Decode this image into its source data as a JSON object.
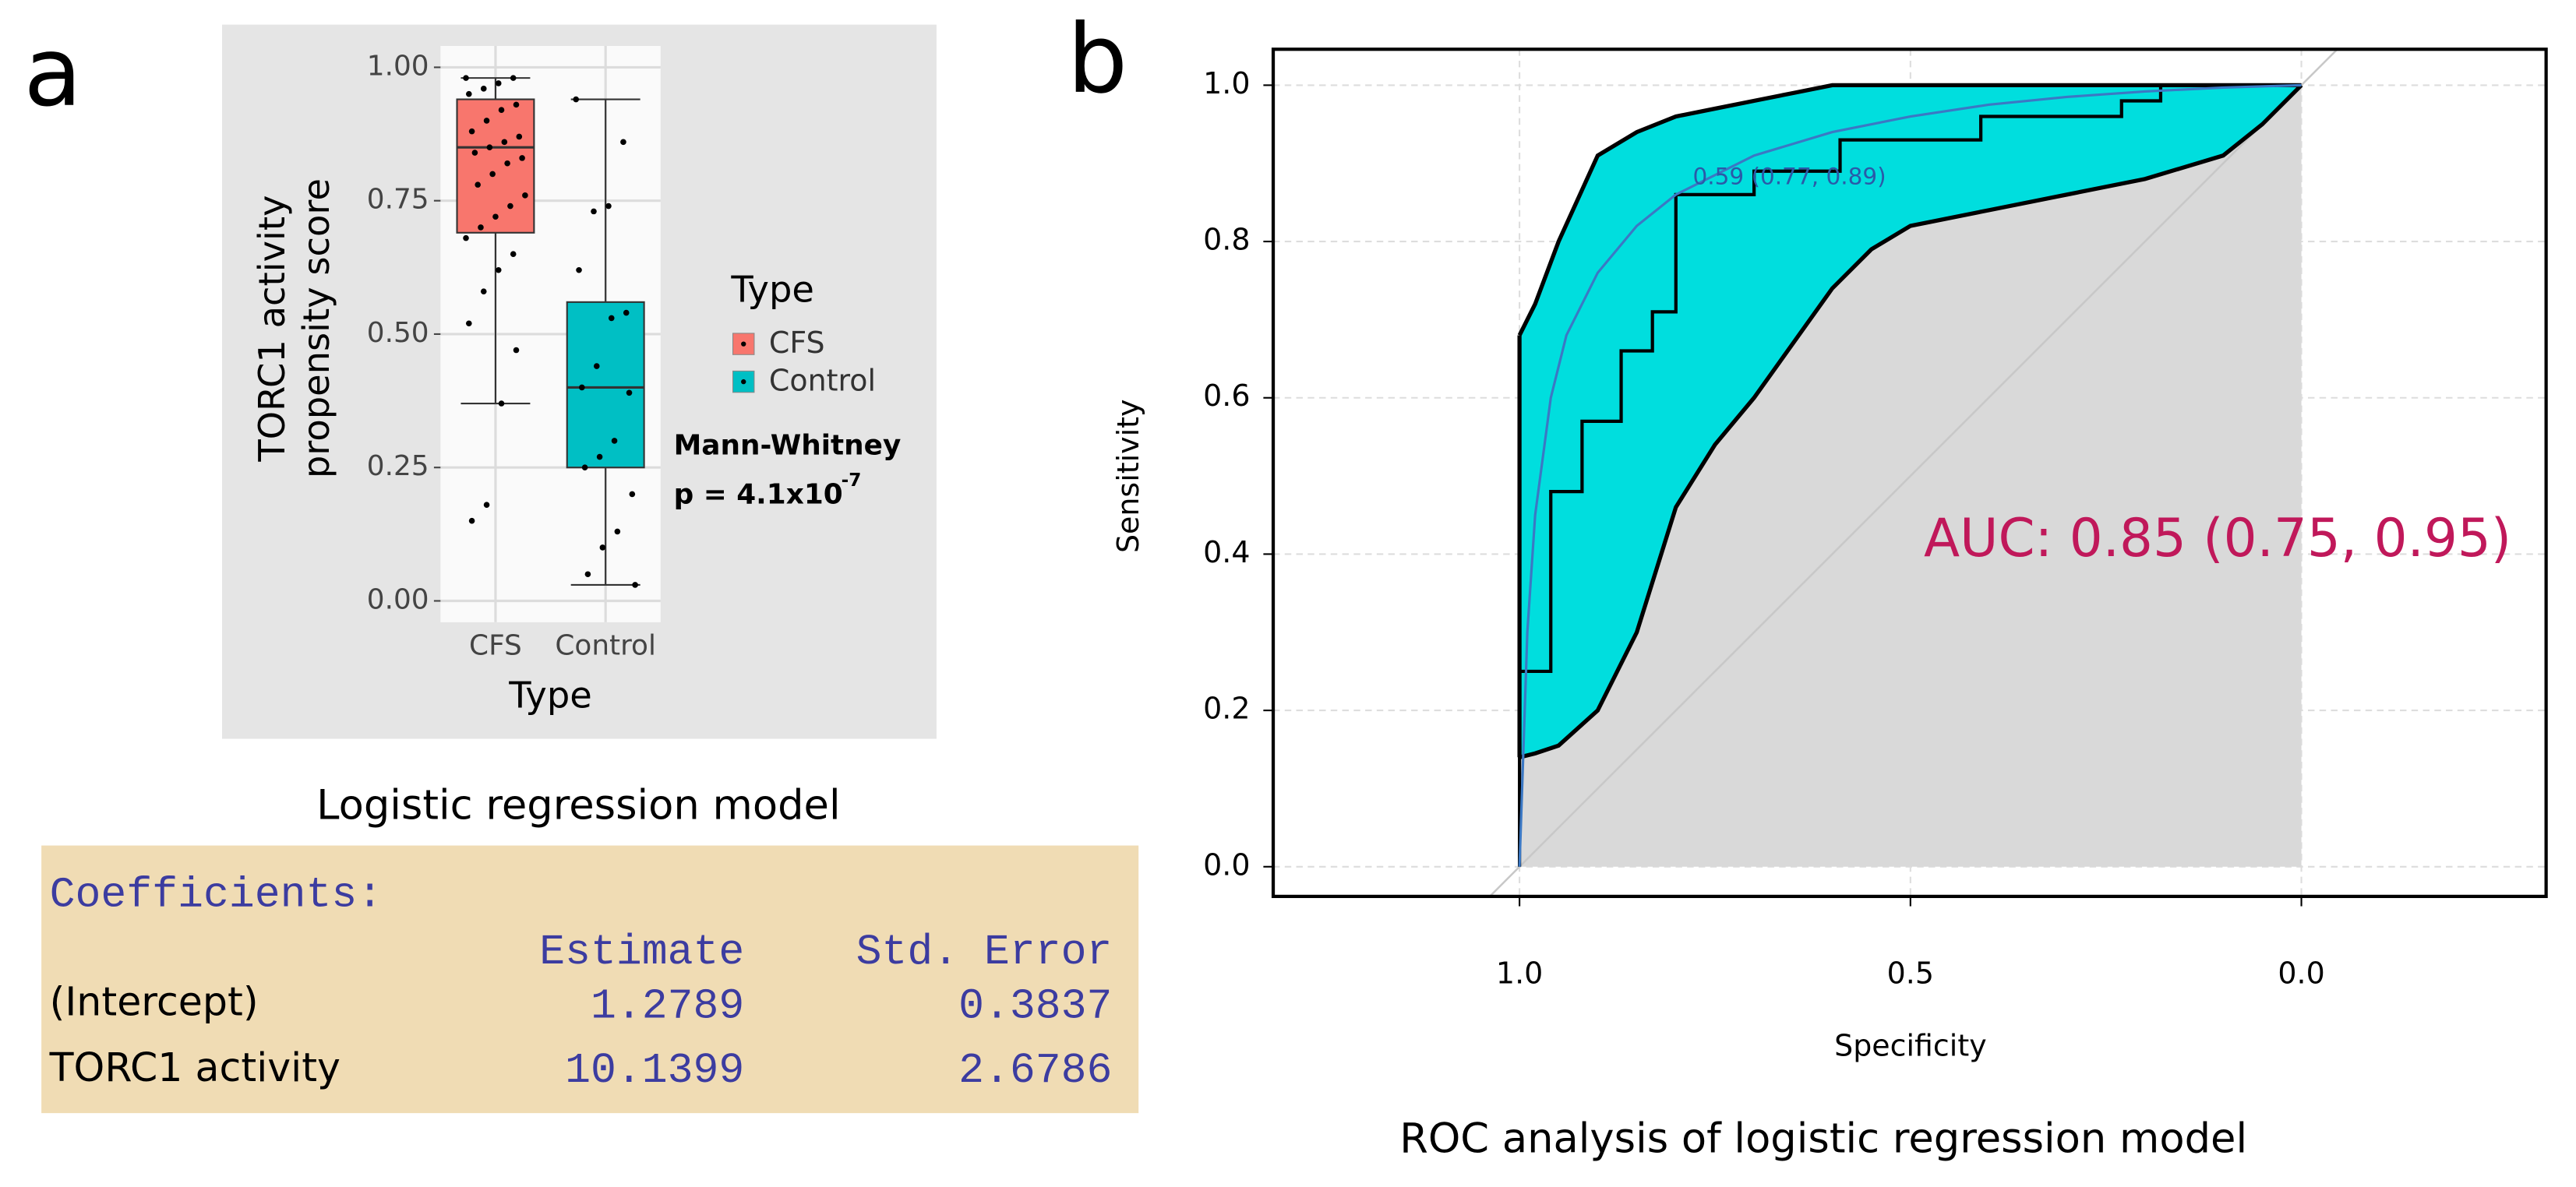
{
  "panel_labels": [
    "a",
    "b"
  ],
  "chart_data": [
    {
      "type": "box",
      "ylabel": [
        "TORC1 activity",
        "propensity score"
      ],
      "xlabel": "Type",
      "categories": [
        "CFS",
        "Control"
      ],
      "legend_title": "Type",
      "annotation": [
        "Mann-Whitney",
        "p = 4.1x10"
      ],
      "annotation_exponent": "-7",
      "ylim": [
        -0.04,
        1.04
      ],
      "yticks": [
        {
          "value": 0,
          "label": "0.00"
        },
        {
          "value": 0.25,
          "label": "0.25"
        },
        {
          "value": 0.5,
          "label": "0.50"
        },
        {
          "value": 0.75,
          "label": "0.75"
        },
        {
          "value": 1,
          "label": "1.00"
        }
      ],
      "grid": true,
      "series": [
        {
          "name": "CFS",
          "color": "#f8766d",
          "box": {
            "low": 0.37,
            "q1": 0.69,
            "median": 0.85,
            "q3": 0.94,
            "high": 0.98
          },
          "points": [
            0.98,
            0.98,
            0.97,
            0.96,
            0.95,
            0.93,
            0.92,
            0.9,
            0.88,
            0.87,
            0.86,
            0.85,
            0.84,
            0.83,
            0.82,
            0.8,
            0.78,
            0.76,
            0.74,
            0.72,
            0.7,
            0.68,
            0.65,
            0.62,
            0.58,
            0.52,
            0.47,
            0.37,
            0.18,
            0.15
          ]
        },
        {
          "name": "Control",
          "color": "#00bfc4",
          "box": {
            "low": 0.03,
            "q1": 0.25,
            "median": 0.4,
            "q3": 0.56,
            "high": 0.94
          },
          "points": [
            0.94,
            0.86,
            0.74,
            0.73,
            0.62,
            0.54,
            0.53,
            0.44,
            0.4,
            0.39,
            0.3,
            0.27,
            0.25,
            0.2,
            0.13,
            0.1,
            0.05,
            0.03
          ]
        }
      ]
    },
    {
      "type": "roc",
      "xlabel": "Specificity",
      "ylabel": "Sensitivity",
      "caption": "ROC analysis of logistic regression model",
      "annotation": "AUC: 0.85 (0.75, 0.95)",
      "annotation_color": "#c0185a",
      "xlim": [
        1.315,
        -0.313
      ],
      "ylim": [
        -0.038,
        1.046
      ],
      "xticks": [
        {
          "value": 1,
          "label": "1.0"
        },
        {
          "value": 0.5,
          "label": "0.5"
        },
        {
          "value": 0,
          "label": "0.0"
        }
      ],
      "yticks": [
        {
          "value": 0,
          "label": "0.0"
        },
        {
          "value": 0.2,
          "label": "0.2"
        },
        {
          "value": 0.4,
          "label": "0.4"
        },
        {
          "value": 0.6,
          "label": "0.6"
        },
        {
          "value": 0.8,
          "label": "0.8"
        },
        {
          "value": 1,
          "label": "1.0"
        }
      ],
      "grid": true,
      "ci_band": {
        "color": "#00dede",
        "x": [
          1,
          0.98,
          0.95,
          0.9,
          0.85,
          0.8,
          0.75,
          0.7,
          0.65,
          0.6,
          0.55,
          0.5,
          0.4,
          0.3,
          0.2,
          0.1,
          0.05,
          0
        ],
        "upper": [
          0.68,
          0.72,
          0.8,
          0.91,
          0.94,
          0.96,
          0.97,
          0.98,
          0.99,
          1,
          1,
          1,
          1,
          1,
          1,
          1,
          1,
          1
        ],
        "lower": [
          0.14,
          0.145,
          0.155,
          0.2,
          0.3,
          0.46,
          0.54,
          0.6,
          0.67,
          0.74,
          0.79,
          0.82,
          0.84,
          0.86,
          0.88,
          0.91,
          0.95,
          1
        ]
      },
      "roc_curve": {
        "color": "#000000",
        "x": [
          1,
          1,
          0.96,
          0.96,
          0.92,
          0.92,
          0.87,
          0.87,
          0.83,
          0.83,
          0.8,
          0.8,
          0.7,
          0.7,
          0.59,
          0.59,
          0.41,
          0.41,
          0.23,
          0.23,
          0.18,
          0.18,
          0
        ],
        "values": [
          0,
          0.25,
          0.25,
          0.48,
          0.48,
          0.57,
          0.57,
          0.66,
          0.66,
          0.71,
          0.71,
          0.86,
          0.86,
          0.89,
          0.89,
          0.93,
          0.93,
          0.96,
          0.96,
          0.98,
          0.98,
          1,
          1
        ]
      },
      "smooth_curve": {
        "color": "#3b78c4",
        "x": [
          1,
          0.99,
          0.98,
          0.96,
          0.94,
          0.9,
          0.85,
          0.8,
          0.7,
          0.6,
          0.5,
          0.4,
          0.3,
          0.2,
          0.1,
          0
        ],
        "values": [
          0,
          0.3,
          0.45,
          0.6,
          0.68,
          0.76,
          0.82,
          0.86,
          0.91,
          0.94,
          0.96,
          0.975,
          0.985,
          0.992,
          0.997,
          1
        ]
      },
      "threshold": {
        "x": 0.77,
        "y": 0.89,
        "label": "0.59 (0.77, 0.89)",
        "color": "#2a5aa8"
      }
    }
  ],
  "table": {
    "caption": "Logistic regression model",
    "title": "Coefficients:",
    "columns": [
      "Estimate",
      "Std. Error"
    ],
    "rows": [
      [
        "(Intercept)",
        "1.2789",
        "0.3837"
      ],
      [
        "TORC1 activity",
        "10.1399",
        "2.6786"
      ]
    ]
  }
}
